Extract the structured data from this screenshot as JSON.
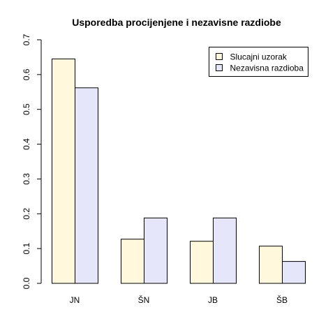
{
  "chart_data": {
    "type": "bar",
    "title": "Usporedba procijenjene i nezavisne razdiobe",
    "categories": [
      "JN",
      "ŠN",
      "JB",
      "ŠB"
    ],
    "series": [
      {
        "name": "Slucajni uzorak",
        "values": [
          0.645,
          0.127,
          0.121,
          0.107
        ],
        "color": "#FFF8DC"
      },
      {
        "name": "Nezavisna razdioba",
        "values": [
          0.562,
          0.188,
          0.188,
          0.063
        ],
        "color": "#E6E6FA"
      }
    ],
    "ylim": [
      0,
      0.7
    ],
    "yticks": [
      "0.0",
      "0.1",
      "0.2",
      "0.3",
      "0.4",
      "0.5",
      "0.6",
      "0.7"
    ],
    "legend_position": "top-right",
    "grid": false
  }
}
